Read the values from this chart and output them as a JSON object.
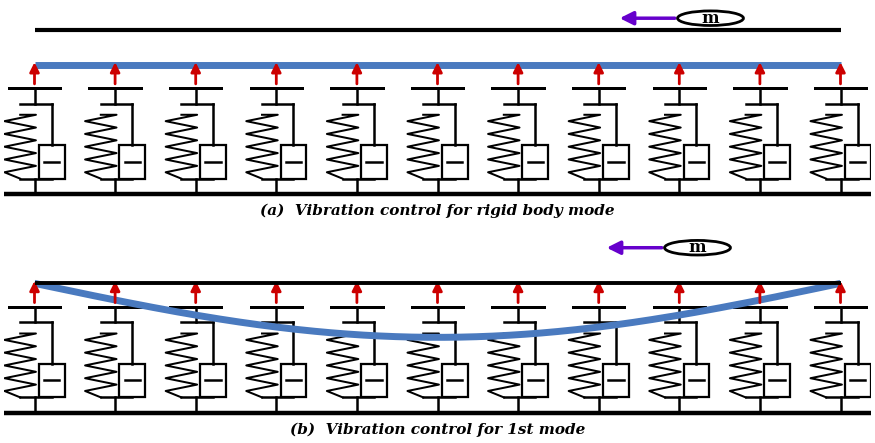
{
  "fig_width": 8.75,
  "fig_height": 4.43,
  "dpi": 100,
  "bg_color": "#ffffff",
  "beam_color": "#4a7abf",
  "beam_linewidth": 5,
  "arrow_color": "#cc0000",
  "mass_arrow_color": "#6600cc",
  "n_dampers": 11,
  "caption_a": "(a)  Vibration control for rigid body mode",
  "caption_b": "(b)  Vibration control for 1st mode",
  "caption_fontsize": 11
}
